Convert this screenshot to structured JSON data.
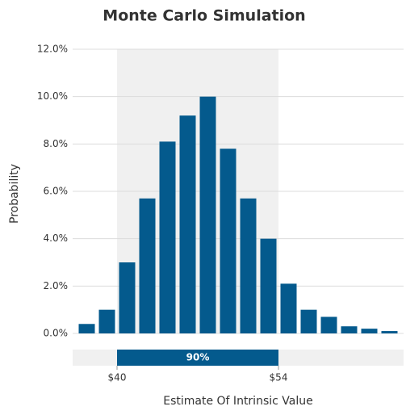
{
  "chart_data": {
    "type": "histogram",
    "title": "Monte Carlo Simulation",
    "x_label": "Estimate Of Intrinsic Value",
    "y_label": "Probability",
    "bins": [
      36.5,
      38.25,
      40,
      41.75,
      43.5,
      45.25,
      47,
      48.75,
      50.5,
      52.25,
      54,
      55.75,
      57.5,
      59.25,
      61,
      62.75,
      64.5
    ],
    "values": [
      0.4,
      1.0,
      3.0,
      5.7,
      8.1,
      9.2,
      10.0,
      7.8,
      5.7,
      4.0,
      2.1,
      1.0,
      0.7,
      0.3,
      0.2,
      0.1
    ],
    "color": "#045a8d",
    "xlim": [
      36.5,
      64.5
    ],
    "xticks": [
      {
        "value": 40,
        "label": "$40"
      },
      {
        "value": 54,
        "label": "$54"
      }
    ],
    "ylim": [
      0,
      12
    ],
    "yticks": [
      {
        "value": 0,
        "label": "0.0%"
      },
      {
        "value": 2,
        "label": "2.0%"
      },
      {
        "value": 4,
        "label": "4.0%"
      },
      {
        "value": 6,
        "label": "6.0%"
      },
      {
        "value": 8,
        "label": "8.0%"
      },
      {
        "value": 10,
        "label": "10.0%"
      },
      {
        "value": 12,
        "label": "12.0%"
      }
    ],
    "grid": true,
    "interval": {
      "range": [
        40,
        54
      ],
      "label": "90%"
    }
  }
}
